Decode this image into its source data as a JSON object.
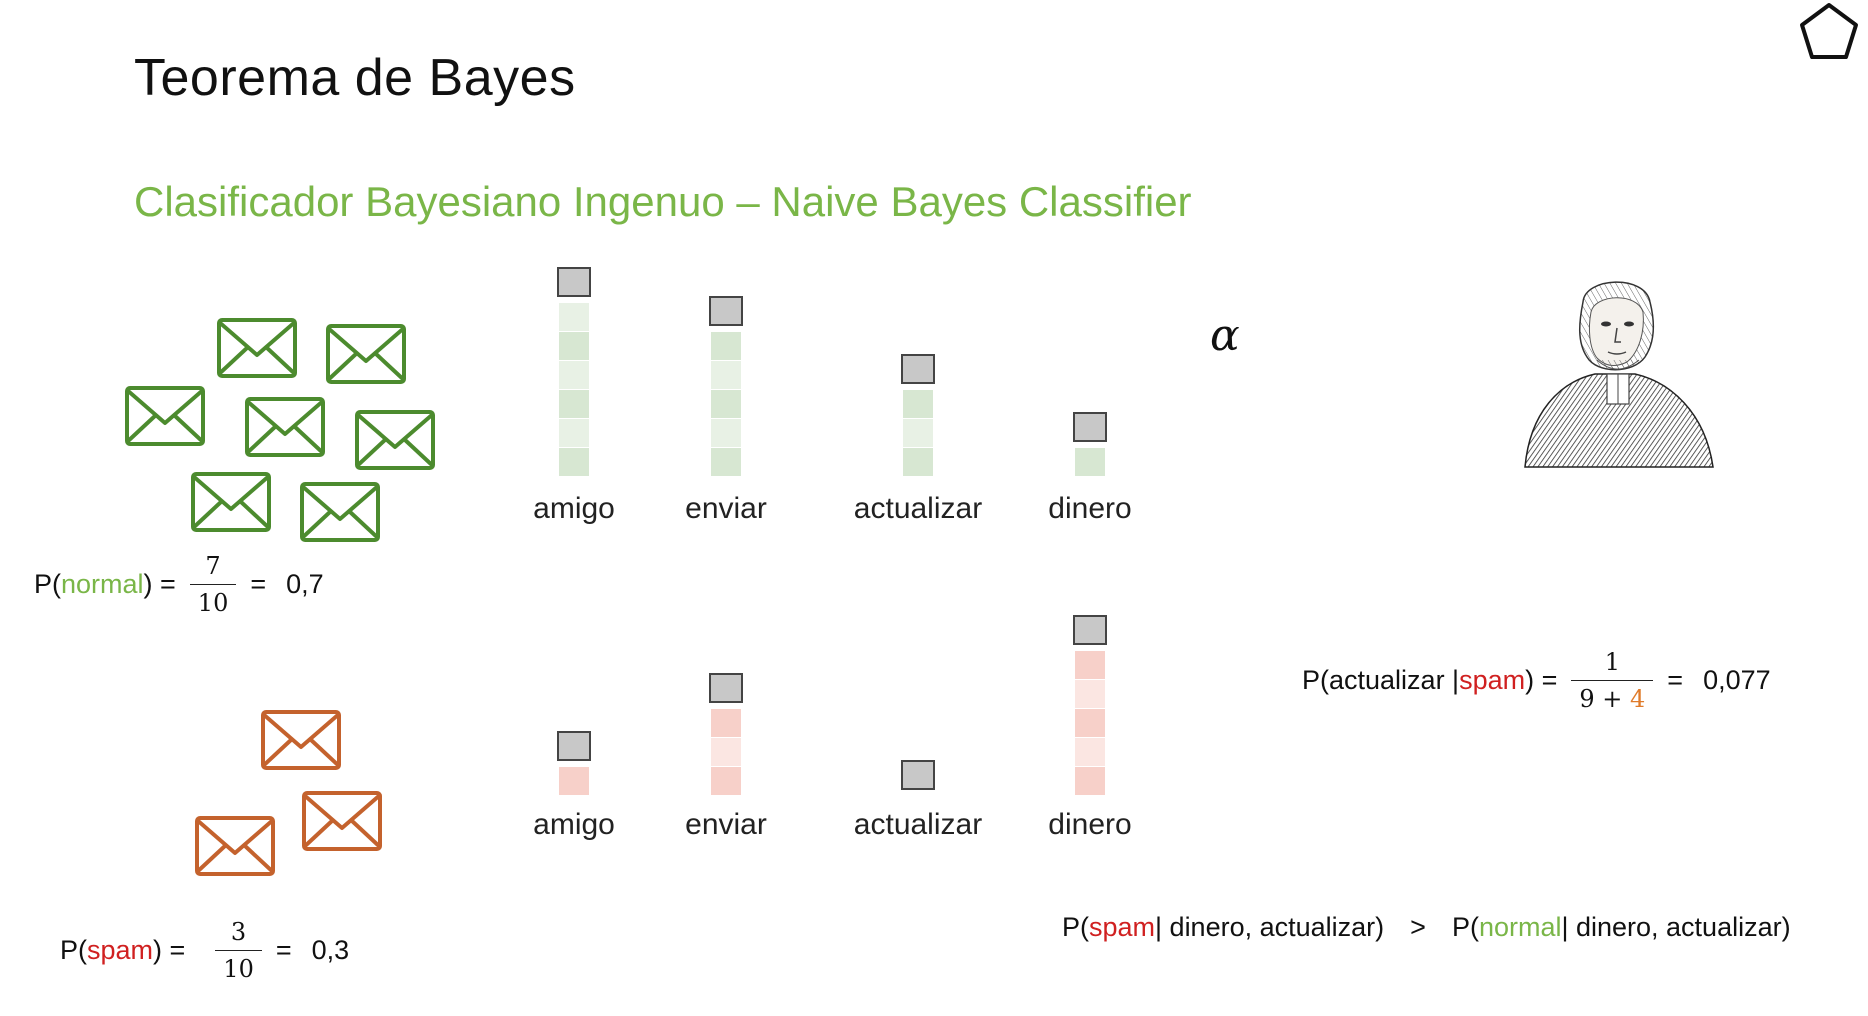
{
  "title": "Teorema de Bayes",
  "subtitle": "Clasificador Bayesiano Ingenuo – Naive Bayes Classifier",
  "alpha_symbol": "α",
  "colors": {
    "green": "#7ab648",
    "red": "#d02020",
    "orange": "#e07b2a",
    "normal_envelope": "#4c8b2e",
    "spam_envelope": "#c4622d"
  },
  "normal_words": [
    {
      "label": "amigo",
      "count": 6
    },
    {
      "label": "enviar",
      "count": 5
    },
    {
      "label": "actualizar",
      "count": 3
    },
    {
      "label": "dinero",
      "count": 1
    }
  ],
  "spam_words": [
    {
      "label": "amigo",
      "count": 1
    },
    {
      "label": "enviar",
      "count": 3
    },
    {
      "label": "actualizar",
      "count": 0
    },
    {
      "label": "dinero",
      "count": 5
    }
  ],
  "normal_envelope_count": 7,
  "spam_envelope_count": 3,
  "p_normal": {
    "prefix": "P(",
    "class": "normal",
    "suffix": ") =",
    "num": "7",
    "den": "10",
    "eq": "=",
    "result": "0,7"
  },
  "p_spam": {
    "prefix": "P(",
    "class": "spam",
    "suffix": ") =",
    "num": "3",
    "den": "10",
    "eq": "=",
    "result": "0,3"
  },
  "p_actualizar_spam": {
    "prefix": "P(actualizar | ",
    "class": "spam",
    "suffix": ") =",
    "num": "1",
    "den_a": "9 + ",
    "den_b": "4",
    "eq": "=",
    "result": "0,077"
  },
  "comparison": {
    "left_prefix": "P(",
    "left_class": "spam",
    "left_suffix": " | dinero, actualizar)",
    "operator": ">",
    "right_prefix": "P(",
    "right_class": "normal",
    "right_suffix": " | dinero, actualizar)"
  },
  "icons": {
    "pentagon": "pentagon-icon",
    "envelope": "envelope-icon",
    "portrait": "thomas-bayes-portrait"
  }
}
